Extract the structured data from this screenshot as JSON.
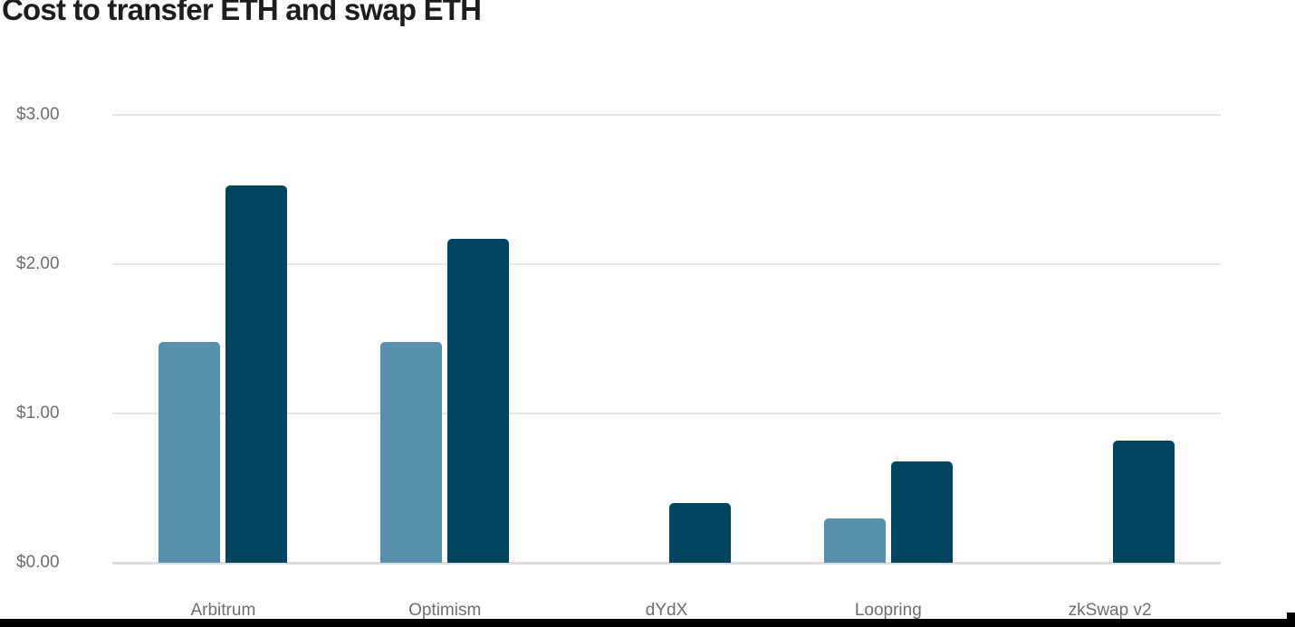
{
  "page": {
    "title": "Cost to transfer ETH and swap ETH"
  },
  "chart_data": {
    "type": "bar",
    "title": "Cost to transfer ETH and swap ETH",
    "categories": [
      "Arbitrum",
      "Optimism",
      "dYdX",
      "Loopring",
      "zkSwap v2"
    ],
    "series": [
      {
        "name": "Transfer ETH",
        "color": "#5791ab",
        "values": [
          1.48,
          1.48,
          null,
          0.3,
          null
        ]
      },
      {
        "name": "Swap ETH",
        "color": "#03455f",
        "values": [
          2.53,
          2.17,
          0.4,
          0.68,
          0.82
        ]
      }
    ],
    "xlabel": "",
    "ylabel": "",
    "ylim": [
      0,
      3
    ],
    "y_ticks": [
      {
        "label": "$0.00",
        "value": 0
      },
      {
        "label": "$1.00",
        "value": 1
      },
      {
        "label": "$2.00",
        "value": 2
      },
      {
        "label": "$3.00",
        "value": 3
      }
    ],
    "grid": true,
    "legend": "none",
    "colors": {
      "transfer_bar": "#5791ab",
      "swap_bar": "#03455f",
      "gridline": "#e6e6e6",
      "axis_text": "#6e6e6e",
      "title_text": "#1d1d1d"
    }
  }
}
